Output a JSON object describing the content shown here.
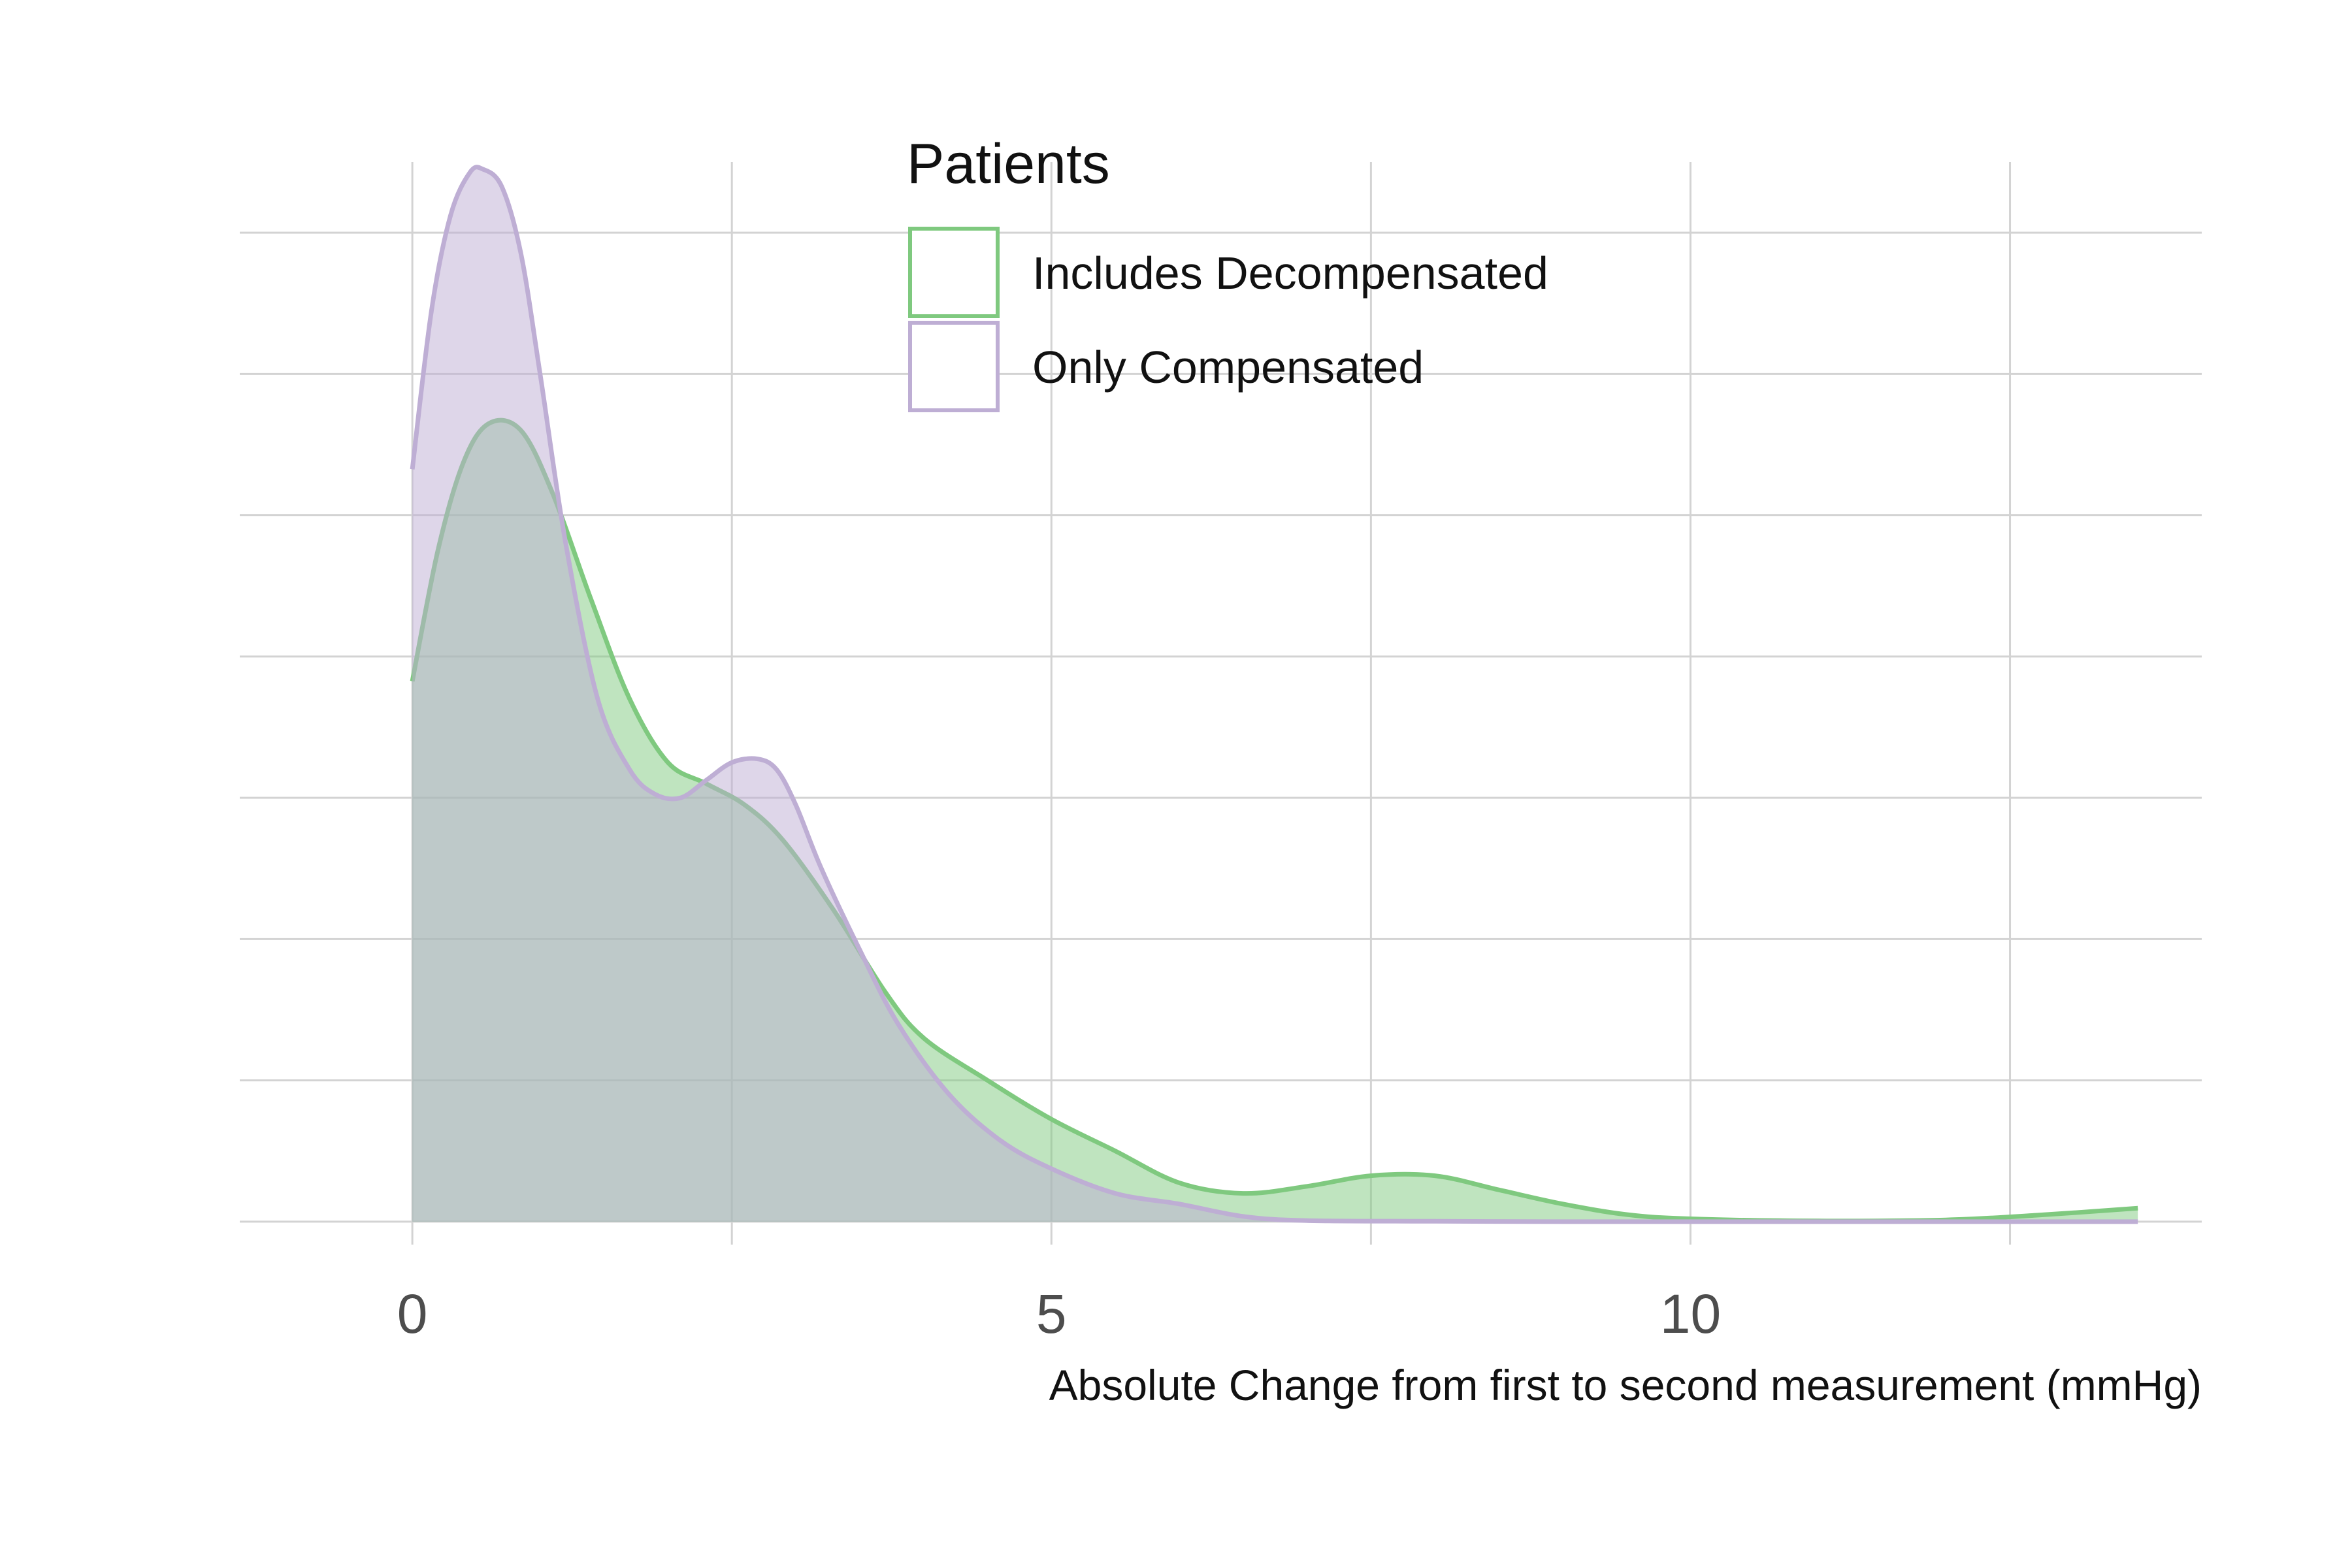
{
  "chart_data": {
    "type": "area",
    "title": "",
    "xlabel": "Absolute Change from first to second measurement (mmHg)",
    "ylabel": "",
    "xlim": [
      -1.35,
      14.0
    ],
    "ylim": [
      -0.0065,
      0.3
    ],
    "x_ticks": [
      0,
      5,
      10
    ],
    "x_tick_labels": [
      "0",
      "5",
      "10"
    ],
    "x_minor_grid": [
      2.5,
      7.5,
      12.5
    ],
    "y_grid": [
      0,
      0.04,
      0.08,
      0.12,
      0.16,
      0.2,
      0.24,
      0.28
    ],
    "y_tick_labels_shown": false,
    "grid": true,
    "legend": {
      "title": "Patients",
      "position": "top-center",
      "entries": [
        "Includes Decompensated",
        "Only Compensated"
      ]
    },
    "series": [
      {
        "name": "Includes Decompensated",
        "line_color": "#7fc97f",
        "fill_color": "#7fc97f",
        "fill_opacity": 0.5,
        "x": [
          0,
          0.2,
          0.4,
          0.6,
          0.85,
          1.1,
          1.4,
          1.7,
          2.0,
          2.3,
          2.6,
          2.9,
          3.3,
          3.7,
          4.0,
          4.5,
          5.0,
          5.5,
          6.0,
          6.5,
          7.0,
          7.5,
          8.0,
          8.5,
          9.0,
          9.5,
          10.0,
          11.0,
          12.0,
          12.7,
          13.5
        ],
        "y": [
          0.153,
          0.19,
          0.215,
          0.226,
          0.224,
          0.206,
          0.176,
          0.148,
          0.13,
          0.124,
          0.118,
          0.108,
          0.088,
          0.065,
          0.052,
          0.04,
          0.029,
          0.02,
          0.011,
          0.008,
          0.01,
          0.013,
          0.013,
          0.009,
          0.005,
          0.002,
          0.0008,
          0.0002,
          0.0005,
          0.0018,
          0.0038
        ]
      },
      {
        "name": "Only Compensated",
        "line_color": "#beaed4",
        "fill_color": "#beaed4",
        "fill_opacity": 0.5,
        "x": [
          0,
          0.15,
          0.3,
          0.45,
          0.55,
          0.7,
          0.85,
          1.0,
          1.2,
          1.45,
          1.7,
          1.9,
          2.1,
          2.3,
          2.5,
          2.7,
          2.85,
          3.0,
          3.2,
          3.5,
          3.8,
          4.2,
          4.6,
          5.0,
          5.5,
          6.0,
          6.5,
          7.0,
          8.0,
          9.0,
          10.0,
          11.0,
          12.0,
          13.5
        ],
        "y": [
          0.213,
          0.258,
          0.285,
          0.297,
          0.298,
          0.293,
          0.274,
          0.24,
          0.192,
          0.148,
          0.128,
          0.121,
          0.12,
          0.125,
          0.13,
          0.131,
          0.128,
          0.118,
          0.1,
          0.077,
          0.056,
          0.036,
          0.023,
          0.015,
          0.008,
          0.005,
          0.0015,
          0.0003,
          0.0001,
          0,
          0,
          0,
          0,
          0
        ]
      }
    ]
  }
}
